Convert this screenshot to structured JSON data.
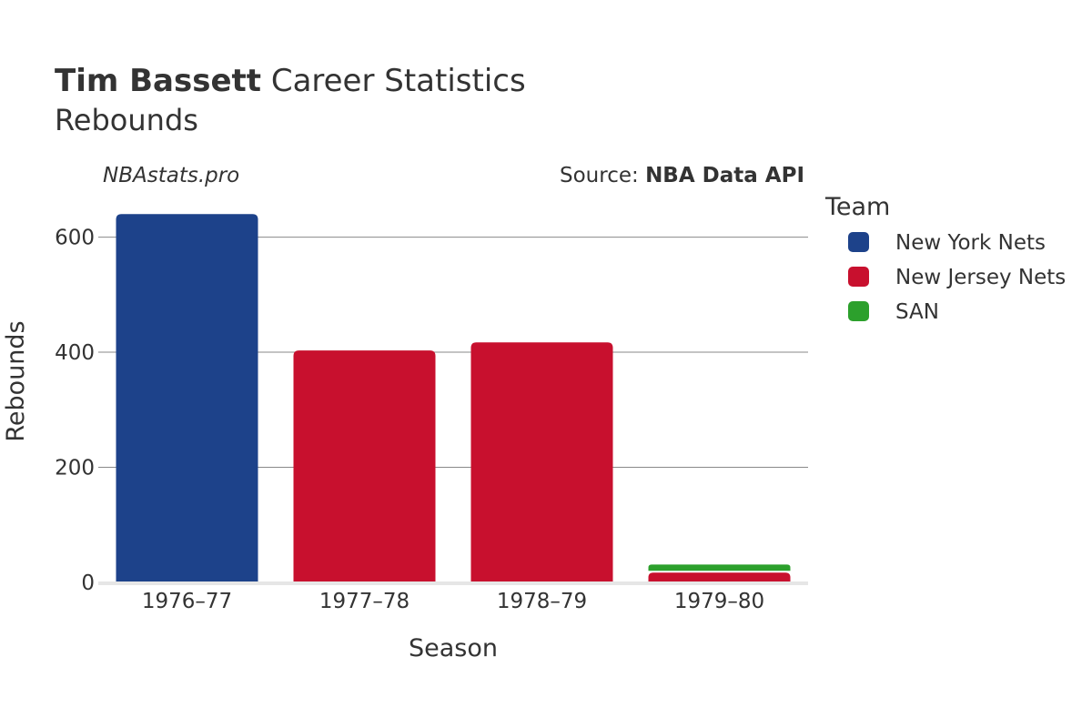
{
  "header": {
    "player_name": "Tim Bassett",
    "title_rest": "Career Statistics",
    "subtitle": "Rebounds"
  },
  "watermark": "NBAstats.pro",
  "source": {
    "prefix": "Source: ",
    "name": "NBA Data API"
  },
  "legend": {
    "title": "Team",
    "position": "right"
  },
  "colors": {
    "New York Nets": "#1d428a",
    "New Jersey Nets": "#c8102e",
    "SAN": "#2ca02c"
  },
  "chart_data": {
    "type": "bar",
    "stacked": true,
    "title": "Tim Bassett Career Statistics",
    "subtitle": "Rebounds",
    "xlabel": "Season",
    "ylabel": "Rebounds",
    "categories": [
      "1976–77",
      "1977–78",
      "1978–79",
      "1979–80"
    ],
    "series": [
      {
        "name": "New York Nets",
        "values": [
          640,
          0,
          0,
          0
        ]
      },
      {
        "name": "New Jersey Nets",
        "values": [
          0,
          403,
          417,
          17
        ]
      },
      {
        "name": "SAN",
        "values": [
          0,
          0,
          0,
          14
        ]
      }
    ],
    "ylim": [
      0,
      680
    ],
    "yticks": [
      0,
      200,
      400,
      600
    ],
    "grid": true
  }
}
